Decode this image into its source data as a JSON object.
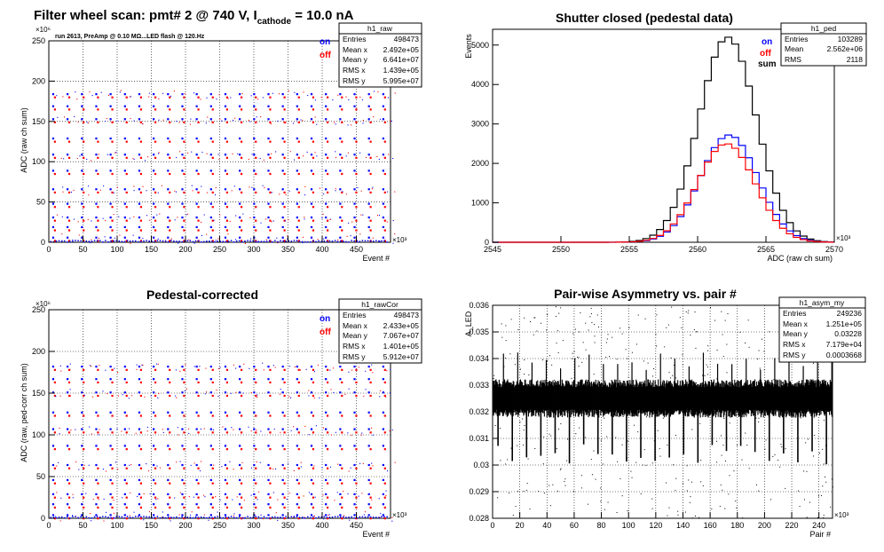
{
  "colors": {
    "on": "#0000ff",
    "off": "#ff0000",
    "sum": "#000000",
    "frame": "#000000",
    "grid": "#000000"
  },
  "chart_data": [
    {
      "type": "scatter",
      "title": "Filter wheel scan: pmt#   2 @   740 V, I",
      "title_sub": "cathode",
      "title_tail": "  = 10.0 nA",
      "annotation": "run 2613, PreAmp @ 0.10 MΩ...LED flash @  120.Hz",
      "xlabel": "Event #",
      "ylabel": "ADC (raw ch sum)",
      "xexp": "×10³",
      "yexp": "×10⁶",
      "xlim": [
        0,
        500
      ],
      "ylim": [
        0,
        250
      ],
      "xticks": [
        0,
        50,
        100,
        150,
        200,
        250,
        300,
        350,
        400,
        450
      ],
      "yticks": [
        0,
        50,
        100,
        150,
        200,
        250
      ],
      "legend": [
        {
          "name": "on",
          "color": "#0000ff"
        },
        {
          "name": "off",
          "color": "#ff0000"
        }
      ],
      "stats": {
        "name": "h1_raw",
        "rows": [
          [
            "Entries",
            "498473"
          ],
          [
            "Mean x",
            "2.492e+05"
          ],
          [
            "Mean y",
            "6.641e+07"
          ],
          [
            "RMS x",
            "1.439e+05"
          ],
          [
            "RMS y",
            "5.995e+07"
          ]
        ]
      },
      "period": 21,
      "levels": [
        5,
        18,
        30,
        47,
        65,
        88,
        108,
        128,
        152,
        168,
        183
      ]
    },
    {
      "type": "line",
      "title": "Shutter closed (pedestal data)",
      "xlabel": "ADC (raw ch sum)",
      "ylabel": "Events",
      "xexp": "×10³",
      "xlim": [
        2545,
        2570
      ],
      "ylim": [
        0,
        5400
      ],
      "xticks": [
        2545,
        2550,
        2555,
        2560,
        2565,
        2570
      ],
      "yticks": [
        0,
        1000,
        2000,
        3000,
        4000,
        5000
      ],
      "legend": [
        {
          "name": "on",
          "color": "#0000ff"
        },
        {
          "name": "off",
          "color": "#ff0000"
        },
        {
          "name": "sum",
          "color": "#000000"
        }
      ],
      "stats": {
        "name": "h1_ped",
        "rows": [
          [
            "Entries",
            "103289"
          ],
          [
            "Mean",
            "2.562e+06"
          ],
          [
            "RMS",
            "2118"
          ]
        ]
      },
      "series": [
        {
          "name": "sum",
          "color": "#000000",
          "mean": 2562.2,
          "sigma": 2.1,
          "peak": 5200
        },
        {
          "name": "on",
          "color": "#0000ff",
          "mean": 2562.3,
          "sigma": 2.1,
          "peak": 2720
        },
        {
          "name": "off",
          "color": "#ff0000",
          "mean": 2562.1,
          "sigma": 2.1,
          "peak": 2500
        }
      ]
    },
    {
      "type": "scatter",
      "title": "Pedestal-corrected",
      "xlabel": "Event #",
      "ylabel": "ADC (raw, ped-corr ch sum)",
      "xexp": "×10³",
      "yexp": "×10⁶",
      "xlim": [
        0,
        500
      ],
      "ylim": [
        0,
        250
      ],
      "xticks": [
        0,
        50,
        100,
        150,
        200,
        250,
        300,
        350,
        400,
        450
      ],
      "yticks": [
        0,
        50,
        100,
        150,
        200,
        250
      ],
      "legend": [
        {
          "name": "on",
          "color": "#0000ff"
        },
        {
          "name": "off",
          "color": "#ff0000"
        }
      ],
      "stats": {
        "name": "h1_rawCor",
        "rows": [
          [
            "Entries",
            "498473"
          ],
          [
            "Mean x",
            "2.433e+05"
          ],
          [
            "Mean y",
            "7.067e+07"
          ],
          [
            "RMS x",
            "1.401e+05"
          ],
          [
            "RMS y",
            "5.912e+07"
          ]
        ]
      },
      "period": 21,
      "levels": [
        3,
        16,
        28,
        45,
        63,
        86,
        106,
        126,
        150,
        166,
        181
      ]
    },
    {
      "type": "scatter",
      "title": "Pair-wise Asymmetry vs. pair #",
      "xlabel": "Pair #",
      "ylabel": "A_LED",
      "xexp": "×10³",
      "xlim": [
        0,
        250
      ],
      "ylim": [
        0.028,
        0.036
      ],
      "xticks": [
        0,
        20,
        40,
        60,
        80,
        100,
        120,
        140,
        160,
        180,
        200,
        220,
        240
      ],
      "yticks": [
        0.028,
        0.029,
        0.03,
        0.031,
        0.032,
        0.033,
        0.034,
        0.035,
        0.036
      ],
      "ytick_labels": [
        "0.028",
        "0.029",
        "0.03",
        "0.031",
        "0.032",
        "0.033",
        "0.034",
        "0.035",
        "0.036"
      ],
      "stats": {
        "name": "h1_asym_my",
        "rows": [
          [
            "Entries",
            "249236"
          ],
          [
            "Mean x",
            "1.251e+05"
          ],
          [
            "Mean y",
            "0.03228"
          ],
          [
            "RMS x",
            "7.179e+04"
          ],
          [
            "RMS y",
            "0.0003668"
          ]
        ]
      },
      "band_center": 0.0325,
      "band_halfwidth": 0.0006,
      "dip_period": 10.5
    }
  ]
}
